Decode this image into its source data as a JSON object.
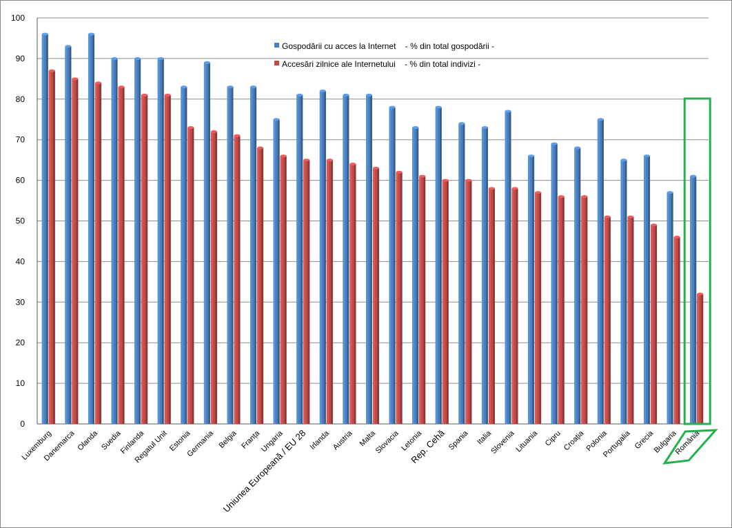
{
  "chart_data": {
    "type": "bar",
    "categories": [
      "Luxemburg",
      "Danemarca",
      "Olanda",
      "Suedia",
      "Finlanda",
      "Regatul Unit",
      "Estonia",
      "Germania",
      "Belgia",
      "Franța",
      "Ungaria",
      "Uniunea Europeană / EU 28",
      "Irlanda",
      "Austria",
      "Malta",
      "Slovacia",
      "Letonia",
      "Rep. Cehă",
      "Spania",
      "Italia",
      "Slovenia",
      "Lituania",
      "Cipru",
      "Croația",
      "Polonia",
      "Portugalia",
      "Grecia",
      "Bulgaria",
      "România"
    ],
    "series": [
      {
        "name": "Gospodării cu acces la Internet    - % din total gospodării -",
        "color": "#4a7ebb",
        "values": [
          96,
          93,
          96,
          90,
          90,
          90,
          83,
          89,
          83,
          83,
          75,
          81,
          82,
          81,
          81,
          78,
          73,
          78,
          74,
          73,
          77,
          66,
          69,
          68,
          75,
          65,
          66,
          57,
          61
        ]
      },
      {
        "name": "Accesări zilnice ale Internetului    - % din total indivizi -",
        "color": "#be4b48",
        "values": [
          87,
          85,
          84,
          83,
          81,
          81,
          73,
          72,
          71,
          68,
          66,
          65,
          65,
          64,
          63,
          62,
          61,
          60,
          60,
          58,
          58,
          57,
          56,
          56,
          51,
          51,
          49,
          46,
          32
        ]
      }
    ],
    "ylim": [
      0,
      100
    ],
    "yticks": [
      0,
      10,
      20,
      30,
      40,
      50,
      60,
      70,
      80,
      90,
      100
    ],
    "grid": true,
    "legend_position": "top-center",
    "highlight_category": "România",
    "highlight_color": "#22b14c"
  }
}
